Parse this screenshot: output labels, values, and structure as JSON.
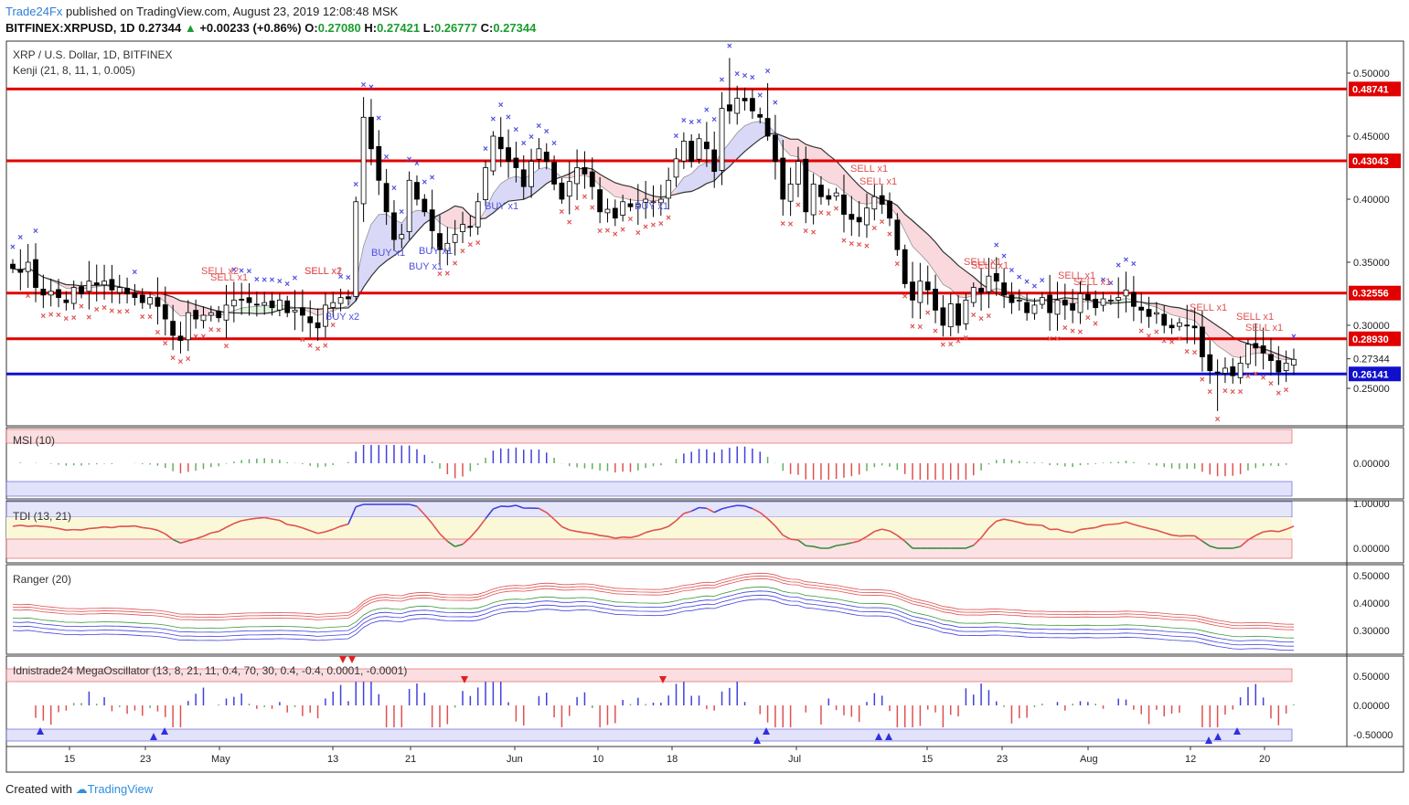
{
  "header": {
    "publisher": "Trade24Fx",
    "published_text": " published on TradingView.com, August 23, 2019 12:08:48 MSK",
    "symbol_line": "BITFINEX:XRPUSD, 1D",
    "last": "0.27344",
    "change": "+0.00233 (+0.86%)",
    "o_label": "O:",
    "o": "0.27080",
    "h_label": "H:",
    "h": "0.27421",
    "l_label": "L:",
    "l": "0.26777",
    "c_label": "C:",
    "c": "0.27344"
  },
  "main_pane": {
    "title": "XRP / U.S. Dollar, 1D, BITFINEX",
    "indicator": "Kenji (21, 8, 11, 1, 0.005)"
  },
  "panes": {
    "msi": "MSI (10)",
    "tdi": "TDI (13, 21)",
    "ranger": "Ranger (20)",
    "mega": "Idnistrade24 MegaOscillator (13, 8, 21, 11, 0.4, 70, 30, 0.4, -0.4, 0.0001, -0.0001)"
  },
  "footer": {
    "created_with": "Created with",
    "brand": "TradingView"
  },
  "colors": {
    "red_level": "#e00000",
    "blue_level": "#1010cc",
    "bull": "#ffffff",
    "bear": "#000000",
    "buy": "#4f4fe0",
    "sell": "#e05050"
  },
  "chart_data": [
    {
      "type": "candlestick",
      "title": "XRP / U.S. Dollar, 1D, BITFINEX",
      "ylim": [
        0.22,
        0.52
      ],
      "y_ticks": [
        "0.50000",
        "0.45000",
        "0.40000",
        "0.35000",
        "0.30000",
        "0.27344",
        "0.25000"
      ],
      "x_ticks": [
        "15",
        "23",
        "May",
        "13",
        "21",
        "Jun",
        "10",
        "18",
        "Jul",
        "15",
        "23",
        "Aug",
        "12",
        "20"
      ],
      "levels": [
        {
          "value": 0.48741,
          "label": "0.48741",
          "color": "red"
        },
        {
          "value": 0.43043,
          "label": "0.43043",
          "color": "red"
        },
        {
          "value": 0.32556,
          "label": "0.32556",
          "color": "red"
        },
        {
          "value": 0.2893,
          "label": "0.28930",
          "color": "red"
        },
        {
          "value": 0.26141,
          "label": "0.26141",
          "color": "blue"
        }
      ],
      "close": [
        0.345,
        0.342,
        0.35,
        0.33,
        0.324,
        0.327,
        0.322,
        0.318,
        0.33,
        0.325,
        0.335,
        0.332,
        0.335,
        0.328,
        0.33,
        0.325,
        0.322,
        0.318,
        0.322,
        0.315,
        0.305,
        0.292,
        0.288,
        0.31,
        0.305,
        0.308,
        0.31,
        0.306,
        0.316,
        0.32,
        0.32,
        0.318,
        0.316,
        0.318,
        0.314,
        0.32,
        0.31,
        0.312,
        0.308,
        0.302,
        0.298,
        0.316,
        0.318,
        0.322,
        0.321,
        0.398,
        0.465,
        0.44,
        0.415,
        0.39,
        0.368,
        0.372,
        0.415,
        0.4,
        0.39,
        0.375,
        0.36,
        0.365,
        0.372,
        0.38,
        0.378,
        0.398,
        0.425,
        0.45,
        0.44,
        0.43,
        0.425,
        0.41,
        0.43,
        0.44,
        0.43,
        0.412,
        0.4,
        0.414,
        0.425,
        0.42,
        0.41,
        0.39,
        0.392,
        0.385,
        0.398,
        0.394,
        0.396,
        0.4,
        0.398,
        0.4,
        0.415,
        0.432,
        0.446,
        0.43,
        0.448,
        0.44,
        0.422,
        0.472,
        0.47,
        0.48,
        0.478,
        0.47,
        0.465,
        0.45,
        0.43,
        0.4,
        0.412,
        0.43,
        0.39,
        0.412,
        0.402,
        0.4,
        0.405,
        0.388,
        0.384,
        0.382,
        0.393,
        0.402,
        0.396,
        0.385,
        0.36,
        0.333,
        0.32,
        0.335,
        0.328,
        0.312,
        0.3,
        0.317,
        0.3,
        0.32,
        0.33,
        0.326,
        0.339,
        0.335,
        0.324,
        0.318,
        0.32,
        0.31,
        0.316,
        0.322,
        0.31,
        0.32,
        0.316,
        0.312,
        0.325,
        0.32,
        0.314,
        0.321,
        0.32,
        0.322,
        0.328,
        0.315,
        0.312,
        0.307,
        0.31,
        0.3,
        0.298,
        0.302,
        0.3,
        0.298,
        0.275,
        0.264,
        0.262,
        0.266,
        0.26,
        0.27,
        0.285,
        0.282,
        0.278,
        0.272,
        0.263,
        0.27,
        0.273
      ],
      "annotations": [
        "SELL x1",
        "SELL x2",
        "SELL x1",
        "SELL x2",
        "BUY x2",
        "BUY x1",
        "BUY x1",
        "BUY x1",
        "BUY x1",
        "BUY x1",
        "SELL x1",
        "SELL x1",
        "SELL x1",
        "SELL x1",
        "SELL x1",
        "SELL x1",
        "SELL x1",
        "SELL x1",
        "SELL x1"
      ]
    },
    {
      "type": "bar",
      "title": "MSI (10)",
      "y_ticks": [
        "0.00000"
      ]
    },
    {
      "type": "line",
      "title": "TDI (13, 21)",
      "y_ticks": [
        "1.00000",
        "0.00000"
      ]
    },
    {
      "type": "line",
      "title": "Ranger (20)",
      "y_ticks": [
        "0.50000",
        "0.40000",
        "0.30000"
      ]
    },
    {
      "type": "bar",
      "title": "Idnistrade24 MegaOscillator (13, 8, 21, 11, 0.4, 70, 30, 0.4, -0.4, 0.0001, -0.0001)",
      "y_ticks": [
        "0.50000",
        "0.00000",
        "-0.50000"
      ]
    }
  ]
}
